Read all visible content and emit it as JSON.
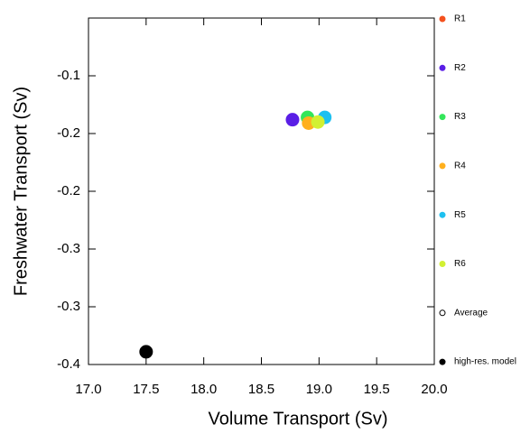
{
  "chart_data": {
    "type": "scatter",
    "xlabel": "Volume Transport (Sv)",
    "ylabel": "Freshwater Transport (Sv)",
    "xlim": [
      17.0,
      20.0
    ],
    "xticks": [
      {
        "value": 17,
        "label": "17.0"
      },
      17.5,
      {
        "value": 18,
        "label": "18.0"
      },
      18.5,
      {
        "value": 19,
        "label": "19.0"
      },
      19.5,
      {
        "value": 20,
        "label": "20.0"
      }
    ],
    "ylim": [
      -0.35,
      -0.05
    ],
    "yticks": [
      -0.1,
      {
        "value": -0.15,
        "label": "-0.2"
      },
      -0.2,
      {
        "value": -0.25,
        "label": "-0.3"
      },
      -0.3,
      {
        "value": -0.35,
        "label": "-0.4"
      }
    ],
    "series": [
      {
        "name": "R1",
        "color": "#f4511e",
        "x": [],
        "values": []
      },
      {
        "name": "R2",
        "color": "#5a1ee6",
        "x": [
          18.77
        ],
        "values": [
          -0.138
        ]
      },
      {
        "name": "R3",
        "color": "#33e65a",
        "x": [
          18.9
        ],
        "values": [
          -0.136
        ]
      },
      {
        "name": "R4",
        "color": "#ffb01e",
        "x": [
          18.91
        ],
        "values": [
          -0.141
        ]
      },
      {
        "name": "R5",
        "color": "#1ec0f0",
        "x": [
          19.05
        ],
        "values": [
          -0.136
        ]
      },
      {
        "name": "R6",
        "color": "#d2f032",
        "x": [
          18.99
        ],
        "values": [
          -0.14
        ]
      },
      {
        "name": "Average",
        "color": "#000000",
        "marker": "open",
        "x": [],
        "values": []
      },
      {
        "name": "high-res. model",
        "color": "#000000",
        "x": [
          17.5
        ],
        "values": [
          -0.339
        ]
      }
    ]
  }
}
